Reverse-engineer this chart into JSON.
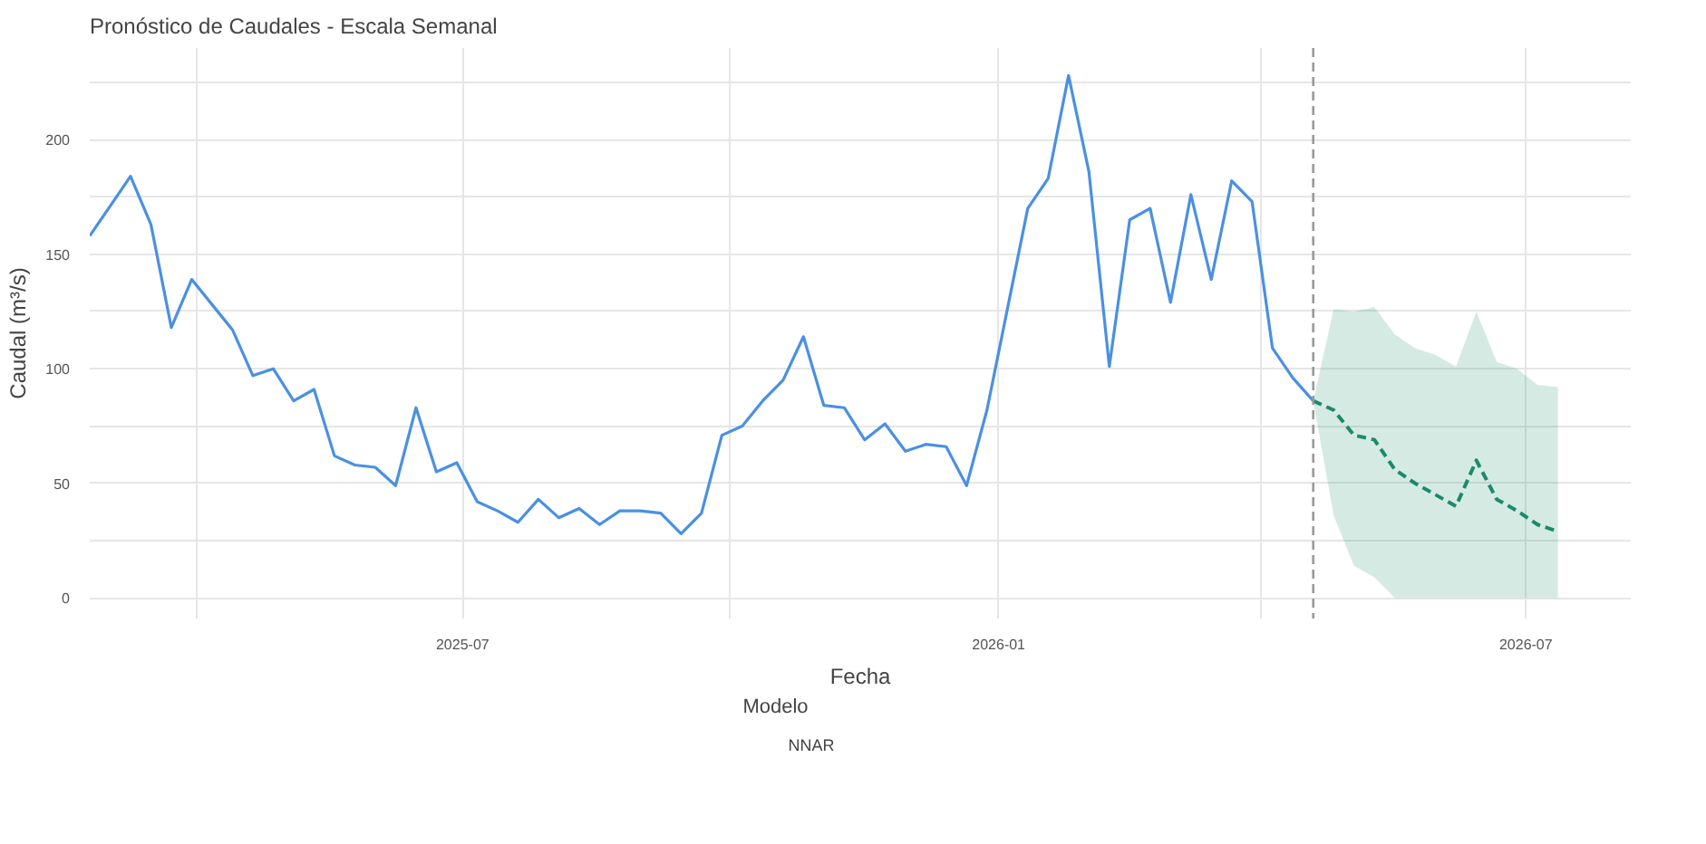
{
  "chart_data": {
    "type": "line",
    "title": "Pronóstico de Caudales - Escala Semanal",
    "xlabel": "Fecha",
    "ylabel": "Caudal (m³/s)",
    "legend_title": "Modelo",
    "xlim": [
      "2025-02-23",
      "2026-08-06"
    ],
    "ylim": [
      -9,
      240
    ],
    "xticks": [
      {
        "value": "2025-04-01",
        "label": null
      },
      {
        "value": "2025-07-01",
        "label": "2025-07"
      },
      {
        "value": "2025-10-01",
        "label": null
      },
      {
        "value": "2026-01-01",
        "label": "2026-01"
      },
      {
        "value": "2026-04-01",
        "label": null
      },
      {
        "value": "2026-07-01",
        "label": "2026-07"
      }
    ],
    "yticks": [
      0,
      {
        "value": 25,
        "label": null
      },
      50,
      {
        "value": 75,
        "label": null
      },
      100,
      {
        "value": 125,
        "label": null
      },
      150,
      {
        "value": 175,
        "label": null
      },
      200,
      {
        "value": 225,
        "label": null
      }
    ],
    "grid": true,
    "legend": "bottom",
    "marker": "none",
    "ref_lines": [
      {
        "axis": "x",
        "value": "2026-04-19",
        "label": null,
        "color": "#999999",
        "line_style": "dashed"
      }
    ],
    "series": [
      {
        "color": "#4a90e2",
        "line_style": "solid",
        "x": [
          "2025-02-23",
          "2025-03-02",
          "2025-03-09",
          "2025-03-16",
          "2025-03-23",
          "2025-03-30",
          "2025-04-06",
          "2025-04-13",
          "2025-04-20",
          "2025-04-27",
          "2025-05-04",
          "2025-05-11",
          "2025-05-18",
          "2025-05-25",
          "2025-06-01",
          "2025-06-08",
          "2025-06-15",
          "2025-06-22",
          "2025-06-29",
          "2025-07-06",
          "2025-07-13",
          "2025-07-20",
          "2025-07-27",
          "2025-08-03",
          "2025-08-10",
          "2025-08-17",
          "2025-08-24",
          "2025-08-31",
          "2025-09-07",
          "2025-09-14",
          "2025-09-21",
          "2025-09-28",
          "2025-10-05",
          "2025-10-12",
          "2025-10-19",
          "2025-10-26",
          "2025-11-02",
          "2025-11-09",
          "2025-11-16",
          "2025-11-23",
          "2025-11-30",
          "2025-12-07",
          "2025-12-14",
          "2025-12-21",
          "2025-12-28",
          "2026-01-04",
          "2026-01-11",
          "2026-01-18",
          "2026-01-25",
          "2026-02-01",
          "2026-02-08",
          "2026-02-15",
          "2026-02-22",
          "2026-03-01",
          "2026-03-08",
          "2026-03-15",
          "2026-03-22",
          "2026-03-29",
          "2026-04-05",
          "2026-04-12",
          "2026-04-19"
        ],
        "values": [
          158,
          171,
          184,
          163,
          118,
          139,
          128,
          117,
          97,
          100,
          86,
          91,
          62,
          58,
          57,
          49,
          83,
          55,
          59,
          42,
          38,
          33,
          43,
          35,
          39,
          32,
          38,
          38,
          37,
          28,
          37,
          71,
          75,
          86,
          95,
          114,
          84,
          83,
          69,
          76,
          64,
          67,
          66,
          49,
          82,
          126,
          170,
          183,
          228,
          186,
          101,
          165,
          170,
          129,
          176,
          139,
          182,
          173,
          109,
          96,
          86
        ]
      },
      {
        "name": "NNAR",
        "color": "#1b8a6b",
        "line_style": "dashed",
        "x": [
          "2026-04-19",
          "2026-04-26",
          "2026-05-03",
          "2026-05-10",
          "2026-05-17",
          "2026-05-24",
          "2026-05-31",
          "2026-06-07",
          "2026-06-14",
          "2026-06-21",
          "2026-06-28",
          "2026-07-05",
          "2026-07-12"
        ],
        "values": [
          86,
          82,
          71,
          69,
          56,
          50,
          45,
          40,
          60,
          43,
          38,
          32,
          29
        ],
        "lower": [
          86,
          36,
          14,
          9,
          0,
          0,
          0,
          0,
          0,
          0,
          0,
          0,
          0
        ],
        "upper": [
          86,
          126,
          125,
          127,
          115,
          109,
          106,
          101,
          125,
          103,
          100,
          93,
          92
        ]
      }
    ]
  }
}
